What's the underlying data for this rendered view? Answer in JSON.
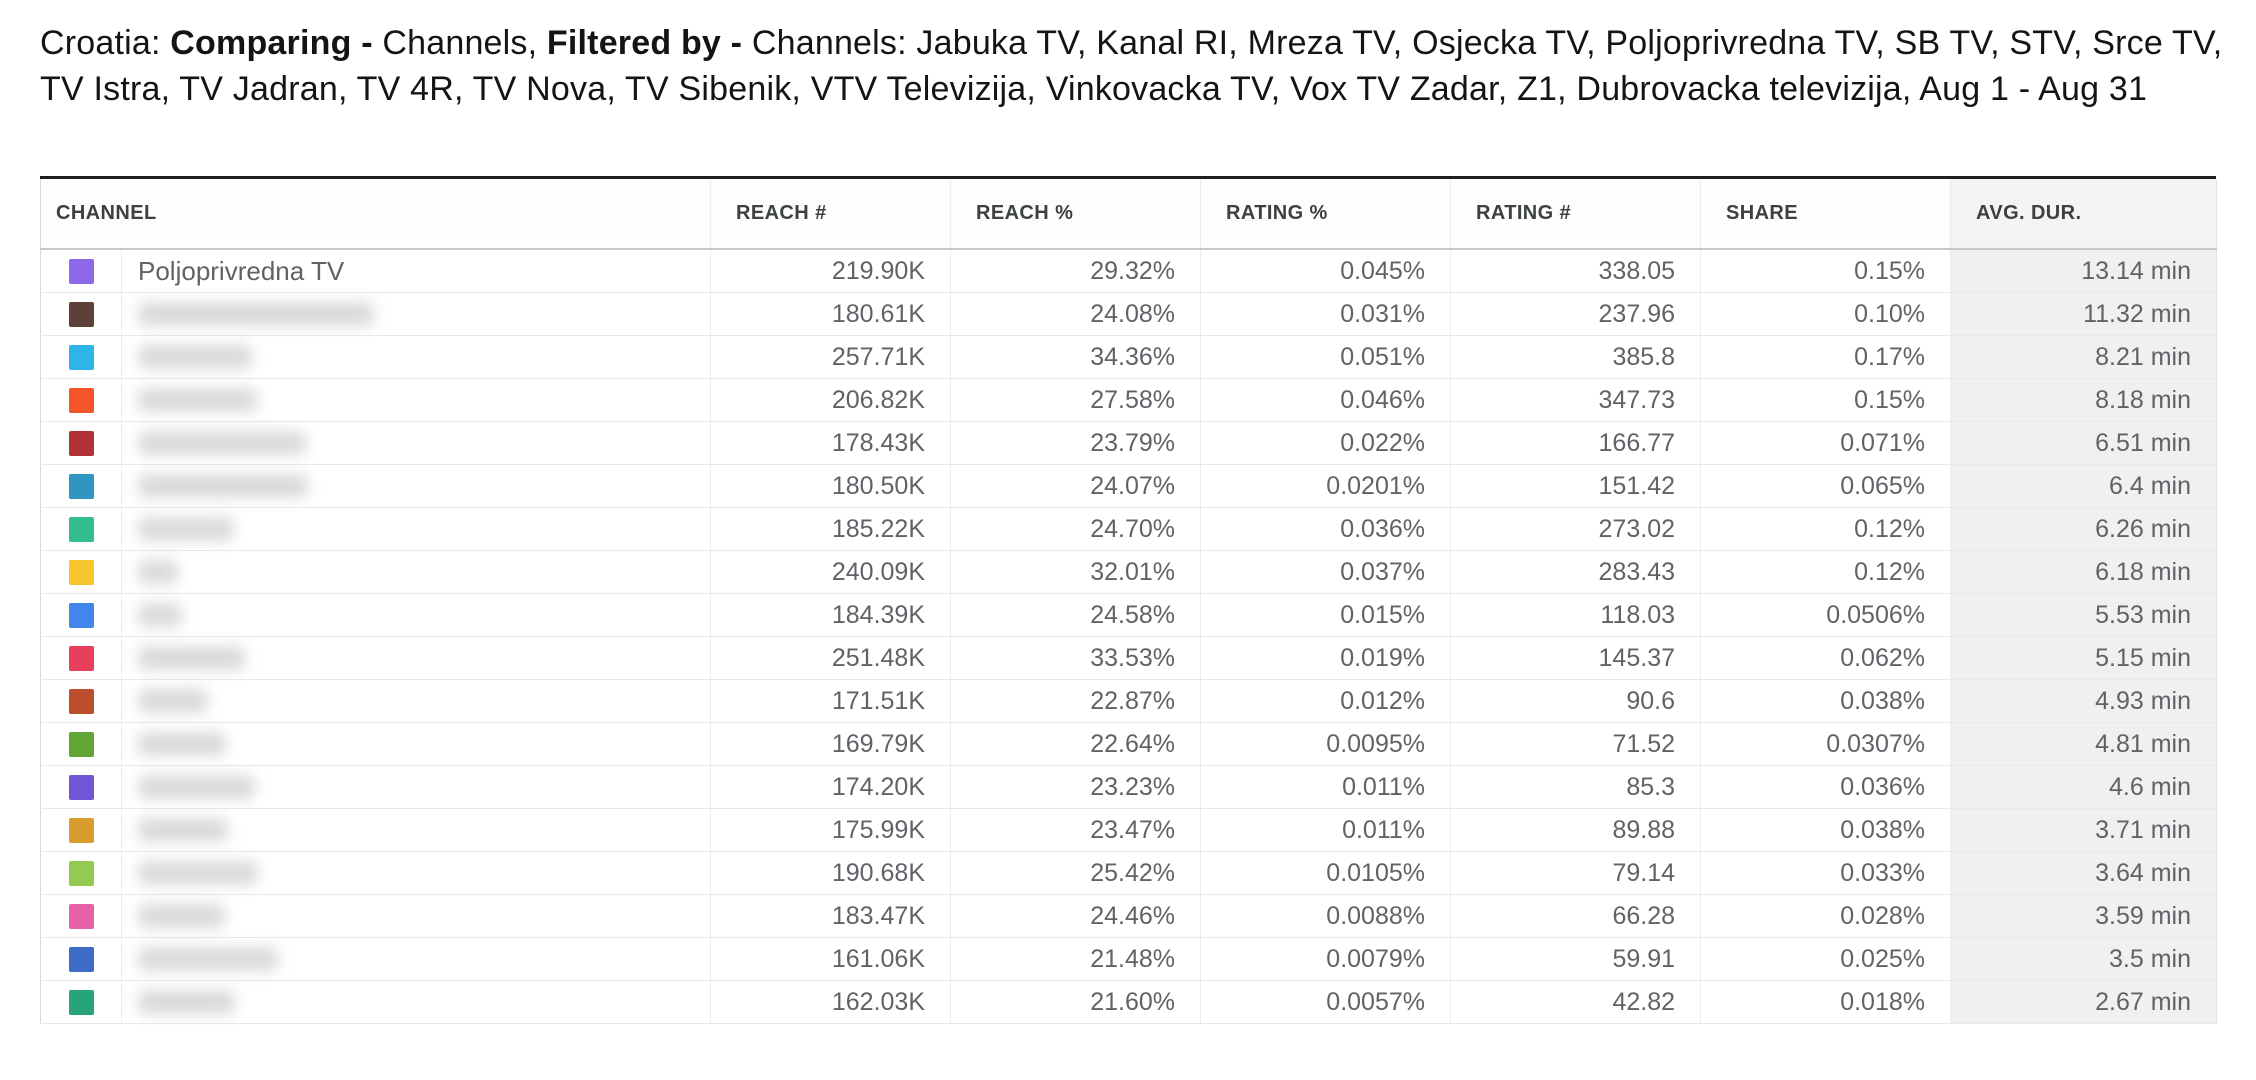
{
  "title": {
    "prefix": "Croatia: ",
    "bold_comparing": "Comparing - ",
    "mid": "Channels, ",
    "bold_filtered": "Filtered by - ",
    "rest": "Channels: Jabuka TV, Kanal RI, Mreza TV, Osjecka TV, Poljoprivredna TV, SB TV, STV, Srce TV, TV Istra, TV Jadran, TV 4R, TV Nova, TV Sibenik, VTV Televizija, Vinkovacka TV, Vox TV Zadar, Z1, Dubrovacka televizija, Aug 1 - Aug 31"
  },
  "table": {
    "columns": [
      "CHANNEL",
      "REACH #",
      "REACH %",
      "RATING %",
      "RATING #",
      "SHARE",
      "AVG. DUR."
    ],
    "rows": [
      {
        "color": "#8d68e8",
        "name": "Poljoprivredna TV",
        "redacted": false,
        "blur_w": 0,
        "reach_n": "219.90K",
        "reach_pct": "29.32%",
        "rating_pct": "0.045%",
        "rating_n": "338.05",
        "share": "0.15%",
        "avg_dur": "13.14 min"
      },
      {
        "color": "#5d4037",
        "name": "",
        "redacted": true,
        "blur_w": 236,
        "reach_n": "180.61K",
        "reach_pct": "24.08%",
        "rating_pct": "0.031%",
        "rating_n": "237.96",
        "share": "0.10%",
        "avg_dur": "11.32 min"
      },
      {
        "color": "#2fb4ea",
        "name": "",
        "redacted": true,
        "blur_w": 114,
        "reach_n": "257.71K",
        "reach_pct": "34.36%",
        "rating_pct": "0.051%",
        "rating_n": "385.8",
        "share": "0.17%",
        "avg_dur": "8.21 min"
      },
      {
        "color": "#f4562a",
        "name": "",
        "redacted": true,
        "blur_w": 119,
        "reach_n": "206.82K",
        "reach_pct": "27.58%",
        "rating_pct": "0.046%",
        "rating_n": "347.73",
        "share": "0.15%",
        "avg_dur": "8.18 min"
      },
      {
        "color": "#b23137",
        "name": "",
        "redacted": true,
        "blur_w": 168,
        "reach_n": "178.43K",
        "reach_pct": "23.79%",
        "rating_pct": "0.022%",
        "rating_n": "166.77",
        "share": "0.071%",
        "avg_dur": "6.51 min"
      },
      {
        "color": "#2f95c1",
        "name": "",
        "redacted": true,
        "blur_w": 170,
        "reach_n": "180.50K",
        "reach_pct": "24.07%",
        "rating_pct": "0.0201%",
        "rating_n": "151.42",
        "share": "0.065%",
        "avg_dur": "6.4 min"
      },
      {
        "color": "#34bd8c",
        "name": "",
        "redacted": true,
        "blur_w": 96,
        "reach_n": "185.22K",
        "reach_pct": "24.70%",
        "rating_pct": "0.036%",
        "rating_n": "273.02",
        "share": "0.12%",
        "avg_dur": "6.26 min"
      },
      {
        "color": "#f6c52f",
        "name": "",
        "redacted": true,
        "blur_w": 40,
        "reach_n": "240.09K",
        "reach_pct": "32.01%",
        "rating_pct": "0.037%",
        "rating_n": "283.43",
        "share": "0.12%",
        "avg_dur": "6.18 min"
      },
      {
        "color": "#4285ec",
        "name": "",
        "redacted": true,
        "blur_w": 44,
        "reach_n": "184.39K",
        "reach_pct": "24.58%",
        "rating_pct": "0.015%",
        "rating_n": "118.03",
        "share": "0.0506%",
        "avg_dur": "5.53 min"
      },
      {
        "color": "#e8405c",
        "name": "",
        "redacted": true,
        "blur_w": 107,
        "reach_n": "251.48K",
        "reach_pct": "33.53%",
        "rating_pct": "0.019%",
        "rating_n": "145.37",
        "share": "0.062%",
        "avg_dur": "5.15 min"
      },
      {
        "color": "#bd4e2b",
        "name": "",
        "redacted": true,
        "blur_w": 70,
        "reach_n": "171.51K",
        "reach_pct": "22.87%",
        "rating_pct": "0.012%",
        "rating_n": "90.6",
        "share": "0.038%",
        "avg_dur": "4.93 min"
      },
      {
        "color": "#61a535",
        "name": "",
        "redacted": true,
        "blur_w": 88,
        "reach_n": "169.79K",
        "reach_pct": "22.64%",
        "rating_pct": "0.0095%",
        "rating_n": "71.52",
        "share": "0.0307%",
        "avg_dur": "4.81 min"
      },
      {
        "color": "#7156d8",
        "name": "",
        "redacted": true,
        "blur_w": 117,
        "reach_n": "174.20K",
        "reach_pct": "23.23%",
        "rating_pct": "0.011%",
        "rating_n": "85.3",
        "share": "0.036%",
        "avg_dur": "4.6 min"
      },
      {
        "color": "#d89b2e",
        "name": "",
        "redacted": true,
        "blur_w": 90,
        "reach_n": "175.99K",
        "reach_pct": "23.47%",
        "rating_pct": "0.011%",
        "rating_n": "89.88",
        "share": "0.038%",
        "avg_dur": "3.71 min"
      },
      {
        "color": "#94ca4f",
        "name": "",
        "redacted": true,
        "blur_w": 120,
        "reach_n": "190.68K",
        "reach_pct": "25.42%",
        "rating_pct": "0.0105%",
        "rating_n": "79.14",
        "share": "0.033%",
        "avg_dur": "3.64 min"
      },
      {
        "color": "#e761a9",
        "name": "",
        "redacted": true,
        "blur_w": 87,
        "reach_n": "183.47K",
        "reach_pct": "24.46%",
        "rating_pct": "0.0088%",
        "rating_n": "66.28",
        "share": "0.028%",
        "avg_dur": "3.59 min"
      },
      {
        "color": "#3d6cc8",
        "name": "",
        "redacted": true,
        "blur_w": 140,
        "reach_n": "161.06K",
        "reach_pct": "21.48%",
        "rating_pct": "0.0079%",
        "rating_n": "59.91",
        "share": "0.025%",
        "avg_dur": "3.5 min"
      },
      {
        "color": "#28a578",
        "name": "",
        "redacted": true,
        "blur_w": 97,
        "reach_n": "162.03K",
        "reach_pct": "21.60%",
        "rating_pct": "0.0057%",
        "rating_n": "42.82",
        "share": "0.018%",
        "avg_dur": "2.67 min"
      }
    ]
  }
}
